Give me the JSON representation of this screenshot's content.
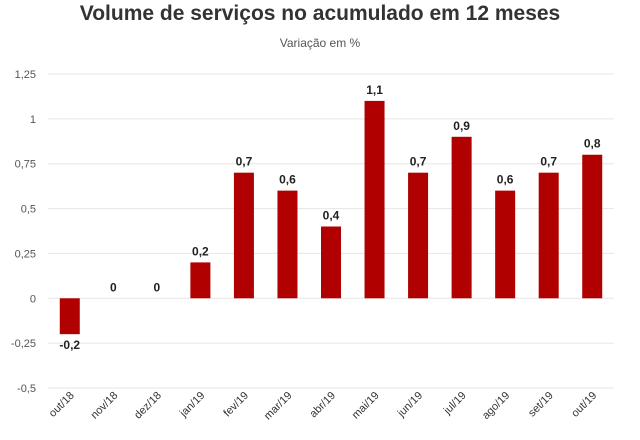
{
  "chart_data": {
    "type": "bar",
    "title": "Volume de serviços no acumulado em 12 meses",
    "subtitle": "Variação em %",
    "categories": [
      "out/18",
      "nov/18",
      "dez/18",
      "jan/19",
      "fev/19",
      "mar/19",
      "abr/19",
      "mai/19",
      "jun/19",
      "jul/19",
      "ago/19",
      "set/19",
      "out/19"
    ],
    "values": [
      -0.2,
      0,
      0,
      0.2,
      0.7,
      0.6,
      0.4,
      1.1,
      0.7,
      0.9,
      0.6,
      0.7,
      0.8
    ],
    "data_labels": [
      "-0,2",
      "0",
      "0",
      "0,2",
      "0,7",
      "0,6",
      "0,4",
      "1,1",
      "0,7",
      "0,9",
      "0,6",
      "0,7",
      "0,8"
    ],
    "ylim": [
      -0.5,
      1.25
    ],
    "yticks": [
      -0.5,
      -0.25,
      0,
      0.25,
      0.5,
      0.75,
      1,
      1.25
    ],
    "ytick_labels": [
      "-0,5",
      "-0,25",
      "0",
      "0,25",
      "0,5",
      "0,75",
      "1",
      "1,25"
    ],
    "grid": true,
    "bar_color": "#b00000"
  }
}
